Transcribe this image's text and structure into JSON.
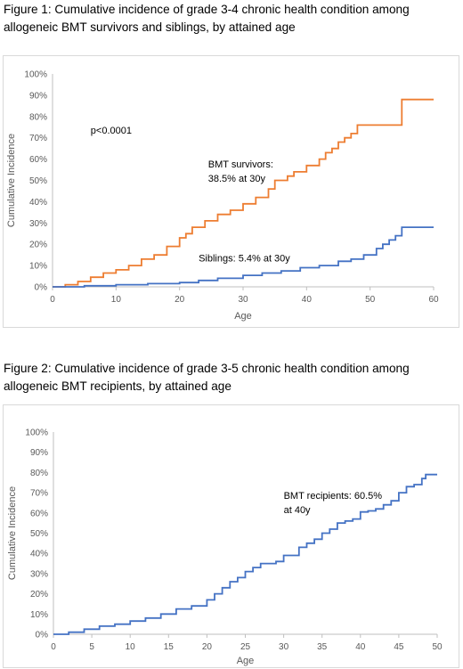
{
  "figure1": {
    "caption": "Figure 1: Cumulative incidence of grade 3-4 chronic health condition among allogeneic BMT survivors and siblings, by attained age",
    "chart_data": {
      "type": "line",
      "xlabel": "Age",
      "ylabel": "Cumulative Incidence",
      "xlim": [
        0,
        60
      ],
      "ylim": [
        0,
        100
      ],
      "xticks": [
        "0",
        "10",
        "20",
        "30",
        "40",
        "50",
        "60"
      ],
      "yticks": [
        "0%",
        "10%",
        "20%",
        "30%",
        "40%",
        "50%",
        "60%",
        "70%",
        "80%",
        "90%",
        "100%"
      ],
      "grid": false,
      "annotations": [
        {
          "lines": [
            "p<0.0001"
          ],
          "x": 6,
          "y": 72
        },
        {
          "lines": [
            "BMT survivors:",
            "38.5% at 30y"
          ],
          "x": 24.5,
          "y": 56
        },
        {
          "lines": [
            "Siblings: 5.4% at 30y"
          ],
          "x": 23,
          "y": 12
        }
      ],
      "series": [
        {
          "color": "#ED7D31",
          "points": [
            [
              0,
              0
            ],
            [
              2,
              1
            ],
            [
              4,
              2.5
            ],
            [
              6,
              4.5
            ],
            [
              8,
              6.5
            ],
            [
              10,
              8
            ],
            [
              12,
              10
            ],
            [
              14,
              13
            ],
            [
              16,
              15
            ],
            [
              18,
              19
            ],
            [
              20,
              23
            ],
            [
              21,
              25
            ],
            [
              22,
              28
            ],
            [
              24,
              31
            ],
            [
              26,
              34
            ],
            [
              28,
              36
            ],
            [
              30,
              39
            ],
            [
              32,
              42
            ],
            [
              34,
              46
            ],
            [
              35,
              50
            ],
            [
              37,
              52
            ],
            [
              38,
              54
            ],
            [
              40,
              57
            ],
            [
              42,
              60
            ],
            [
              43,
              63
            ],
            [
              44,
              65
            ],
            [
              45,
              68
            ],
            [
              46,
              70
            ],
            [
              47,
              72
            ],
            [
              48,
              76
            ],
            [
              55,
              76
            ],
            [
              55,
              88
            ],
            [
              60,
              88
            ]
          ]
        },
        {
          "color": "#4472C4",
          "points": [
            [
              0,
              0
            ],
            [
              5,
              0.5
            ],
            [
              10,
              1
            ],
            [
              15,
              1.5
            ],
            [
              20,
              2
            ],
            [
              23,
              3
            ],
            [
              26,
              4
            ],
            [
              30,
              5.4
            ],
            [
              33,
              6.5
            ],
            [
              36,
              7.5
            ],
            [
              39,
              9
            ],
            [
              42,
              10
            ],
            [
              45,
              12
            ],
            [
              47,
              13
            ],
            [
              49,
              15
            ],
            [
              51,
              18
            ],
            [
              52,
              20
            ],
            [
              53,
              22
            ],
            [
              54,
              24
            ],
            [
              55,
              28
            ],
            [
              60,
              28
            ]
          ]
        }
      ]
    }
  },
  "figure2": {
    "caption": "Figure 2: Cumulative incidence of grade 3-5 chronic health condition among allogeneic BMT recipients, by attained age",
    "chart_data": {
      "type": "line",
      "xlabel": "Age",
      "ylabel": "Cumulative Incidence",
      "xlim": [
        0,
        50
      ],
      "ylim": [
        0,
        100
      ],
      "xticks": [
        "0",
        "5",
        "10",
        "15",
        "20",
        "25",
        "30",
        "35",
        "40",
        "45",
        "50"
      ],
      "yticks": [
        "0%",
        "10%",
        "20%",
        "30%",
        "40%",
        "50%",
        "60%",
        "70%",
        "80%",
        "90%",
        "100%"
      ],
      "grid": false,
      "annotations": [
        {
          "lines": [
            "BMT recipients: 60.5%",
            "at 40y"
          ],
          "x": 30,
          "y": 67
        }
      ],
      "series": [
        {
          "color": "#4472C4",
          "points": [
            [
              0,
              0
            ],
            [
              2,
              1
            ],
            [
              4,
              2.5
            ],
            [
              6,
              4
            ],
            [
              8,
              5
            ],
            [
              10,
              6.5
            ],
            [
              12,
              8
            ],
            [
              14,
              10
            ],
            [
              16,
              12.5
            ],
            [
              18,
              14
            ],
            [
              20,
              17
            ],
            [
              21,
              20
            ],
            [
              22,
              23
            ],
            [
              23,
              26
            ],
            [
              24,
              28
            ],
            [
              25,
              31
            ],
            [
              26,
              33
            ],
            [
              27,
              35
            ],
            [
              29,
              36
            ],
            [
              30,
              39
            ],
            [
              32,
              43
            ],
            [
              33,
              45
            ],
            [
              34,
              47
            ],
            [
              35,
              50
            ],
            [
              36,
              52
            ],
            [
              37,
              55
            ],
            [
              38,
              56
            ],
            [
              39,
              57
            ],
            [
              40,
              60.5
            ],
            [
              41,
              61
            ],
            [
              42,
              62
            ],
            [
              43,
              64
            ],
            [
              44,
              66
            ],
            [
              45,
              70
            ],
            [
              46,
              73
            ],
            [
              47,
              74
            ],
            [
              48,
              77
            ],
            [
              48.5,
              79
            ],
            [
              50,
              79
            ]
          ]
        }
      ]
    }
  }
}
